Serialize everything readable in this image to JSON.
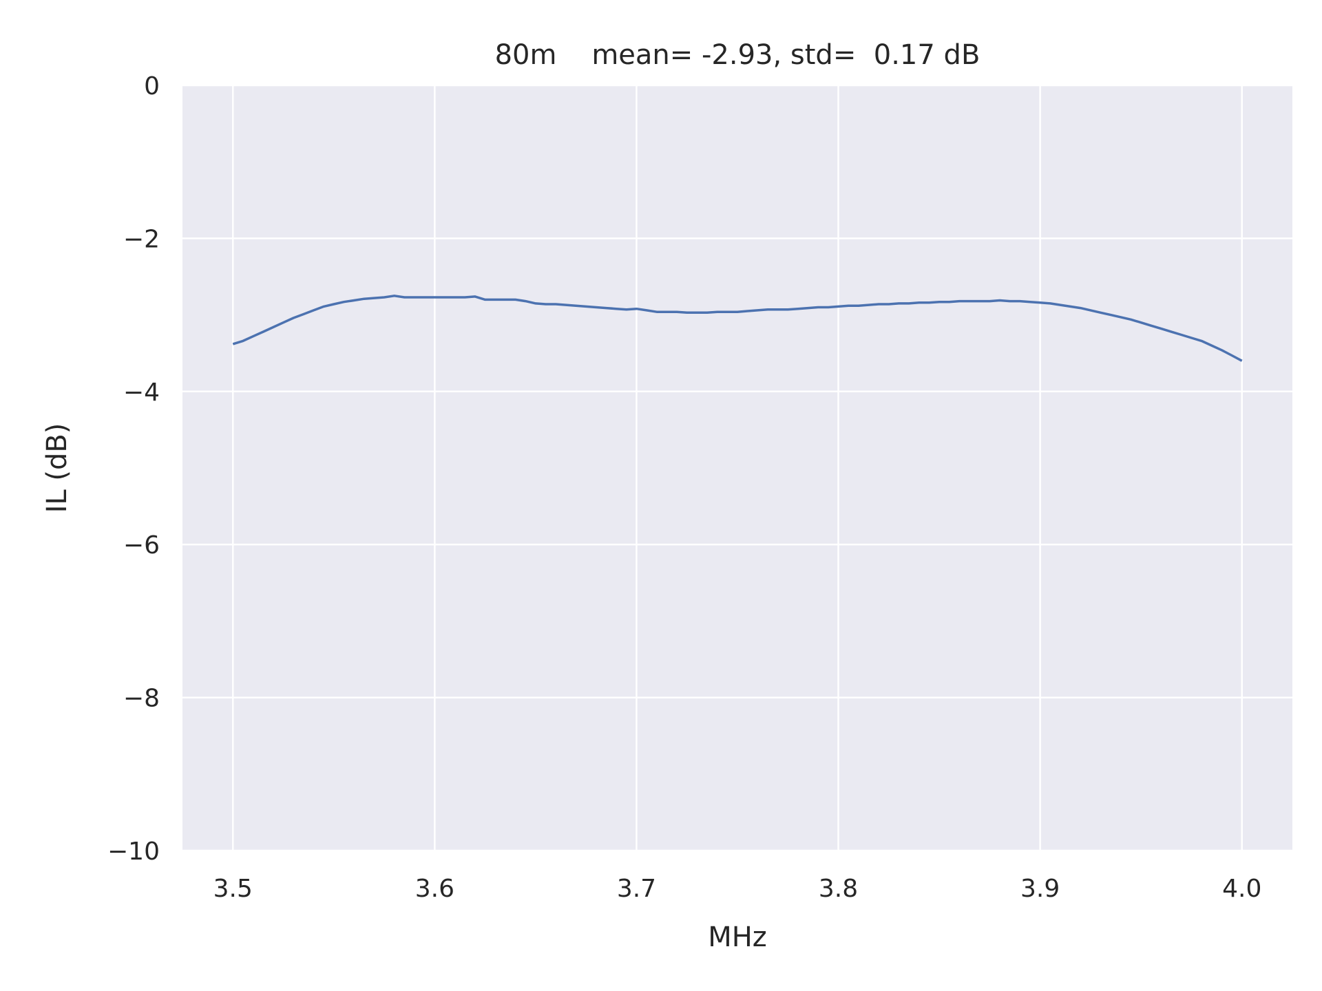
{
  "chart_data": {
    "type": "line",
    "title": "80m    mean= -2.93, std=  0.17 dB",
    "xlabel": "MHz",
    "ylabel": "IL (dB)",
    "xlim": [
      3.475,
      4.025
    ],
    "ylim": [
      -10,
      0
    ],
    "xticks": [
      3.5,
      3.6,
      3.7,
      3.8,
      3.9,
      4.0
    ],
    "xtick_labels": [
      "3.5",
      "3.6",
      "3.7",
      "3.8",
      "3.9",
      "4.0"
    ],
    "yticks": [
      0,
      -2,
      -4,
      -6,
      -8,
      -10
    ],
    "ytick_labels": [
      "0",
      "−2",
      "−4",
      "−6",
      "−8",
      "−10"
    ],
    "grid": true,
    "colors": {
      "background": "#eaeaf2",
      "grid": "#ffffff",
      "line": "#4c72b0"
    },
    "series": [
      {
        "x": [
          3.5,
          3.505,
          3.51,
          3.515,
          3.52,
          3.525,
          3.53,
          3.535,
          3.54,
          3.545,
          3.55,
          3.555,
          3.56,
          3.565,
          3.57,
          3.575,
          3.58,
          3.585,
          3.59,
          3.595,
          3.6,
          3.605,
          3.61,
          3.615,
          3.62,
          3.625,
          3.63,
          3.635,
          3.64,
          3.645,
          3.65,
          3.655,
          3.66,
          3.665,
          3.67,
          3.675,
          3.68,
          3.685,
          3.69,
          3.695,
          3.7,
          3.705,
          3.71,
          3.715,
          3.72,
          3.725,
          3.73,
          3.735,
          3.74,
          3.745,
          3.75,
          3.755,
          3.76,
          3.765,
          3.77,
          3.775,
          3.78,
          3.785,
          3.79,
          3.795,
          3.8,
          3.805,
          3.81,
          3.815,
          3.82,
          3.825,
          3.83,
          3.835,
          3.84,
          3.845,
          3.85,
          3.855,
          3.86,
          3.865,
          3.87,
          3.875,
          3.88,
          3.885,
          3.89,
          3.895,
          3.9,
          3.905,
          3.91,
          3.915,
          3.92,
          3.925,
          3.93,
          3.935,
          3.94,
          3.945,
          3.95,
          3.955,
          3.96,
          3.965,
          3.97,
          3.975,
          3.98,
          3.985,
          3.99,
          3.995,
          4.0
        ],
        "y": [
          -3.38,
          -3.34,
          -3.28,
          -3.22,
          -3.16,
          -3.1,
          -3.04,
          -2.99,
          -2.94,
          -2.89,
          -2.86,
          -2.83,
          -2.81,
          -2.79,
          -2.78,
          -2.77,
          -2.75,
          -2.77,
          -2.77,
          -2.77,
          -2.77,
          -2.77,
          -2.77,
          -2.77,
          -2.76,
          -2.8,
          -2.8,
          -2.8,
          -2.8,
          -2.82,
          -2.85,
          -2.86,
          -2.86,
          -2.87,
          -2.88,
          -2.89,
          -2.9,
          -2.91,
          -2.92,
          -2.93,
          -2.92,
          -2.94,
          -2.96,
          -2.96,
          -2.96,
          -2.97,
          -2.97,
          -2.97,
          -2.96,
          -2.96,
          -2.96,
          -2.95,
          -2.94,
          -2.93,
          -2.93,
          -2.93,
          -2.92,
          -2.91,
          -2.9,
          -2.9,
          -2.89,
          -2.88,
          -2.88,
          -2.87,
          -2.86,
          -2.86,
          -2.85,
          -2.85,
          -2.84,
          -2.84,
          -2.83,
          -2.83,
          -2.82,
          -2.82,
          -2.82,
          -2.82,
          -2.81,
          -2.82,
          -2.82,
          -2.83,
          -2.84,
          -2.85,
          -2.87,
          -2.89,
          -2.91,
          -2.94,
          -2.97,
          -3.0,
          -3.03,
          -3.06,
          -3.1,
          -3.14,
          -3.18,
          -3.22,
          -3.26,
          -3.3,
          -3.34,
          -3.4,
          -3.46,
          -3.53,
          -3.6
        ]
      }
    ]
  }
}
